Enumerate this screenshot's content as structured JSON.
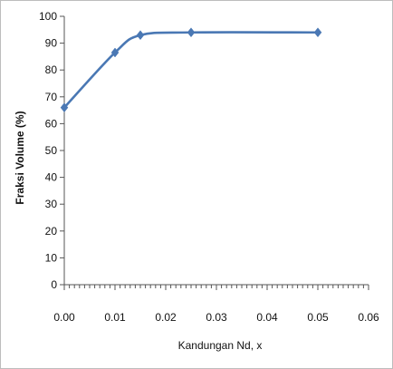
{
  "chart_data": {
    "type": "line",
    "title": "",
    "xlabel": "Kandungan Nd, x",
    "ylabel": "Fraksi Volume  (%)",
    "xlim": [
      0,
      0.06
    ],
    "ylim": [
      0,
      100
    ],
    "xticks": [
      0,
      0.01,
      0.02,
      0.03,
      0.04,
      0.05,
      0.06
    ],
    "xtick_labels": [
      "0.00",
      "0.01",
      "0.02",
      "0.03",
      "0.04",
      "0.05",
      "0.06"
    ],
    "yticks": [
      0,
      10,
      20,
      30,
      40,
      50,
      60,
      70,
      80,
      90,
      100
    ],
    "ytick_labels": [
      "0",
      "10",
      "20",
      "30",
      "40",
      "50",
      "60",
      "70",
      "80",
      "90",
      "100"
    ],
    "grid": false,
    "legend": "none",
    "series": [
      {
        "x": [
          0.0,
          0.01,
          0.015,
          0.025,
          0.05
        ],
        "y": [
          66,
          86.5,
          93,
          94,
          94
        ],
        "marker": "diamond"
      }
    ],
    "colors": {
      "line": "#4a78b4",
      "axis": "#555555"
    }
  }
}
